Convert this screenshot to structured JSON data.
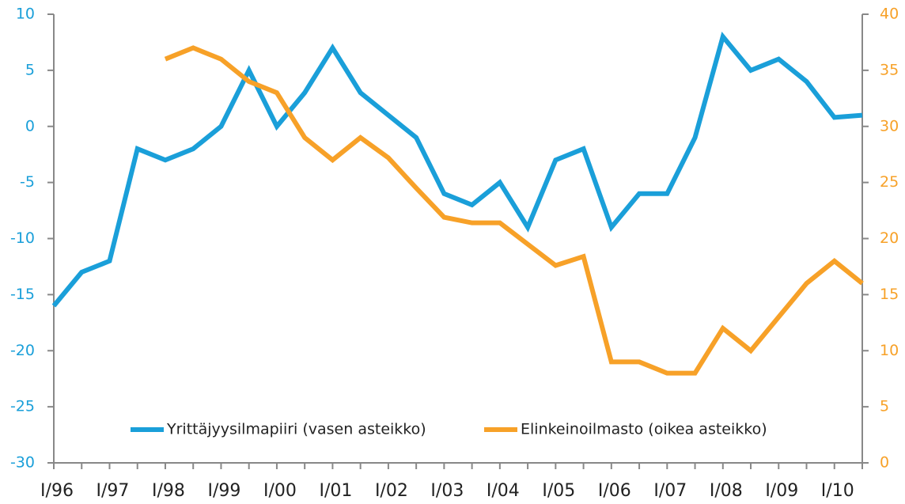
{
  "chart_data": {
    "type": "line",
    "categories": [
      "I/96",
      null,
      "I/97",
      null,
      "I/98",
      null,
      "I/99",
      null,
      "I/00",
      null,
      "I/01",
      null,
      "I/02",
      null,
      "I/03",
      null,
      "I/04",
      null,
      "I/05",
      null,
      "I/06",
      null,
      "I/07",
      null,
      "I/08",
      null,
      "I/09",
      null,
      "I/10",
      null
    ],
    "series": [
      {
        "name": "Yrittäjyysilmapiiri (vasen asteikko)",
        "color": "#1a9fd9",
        "axis": "y",
        "values": [
          -16,
          -13,
          -12,
          -2,
          -3,
          -2,
          0,
          5,
          0,
          3,
          7,
          3,
          1,
          -1,
          -6,
          -7,
          -5,
          -9,
          -3,
          -2,
          -9,
          -6,
          -6,
          -1,
          8,
          5,
          6,
          4,
          0.8,
          1
        ]
      },
      {
        "name": "Elinkeinoilmasto (oikea asteikko)",
        "color": "#f7a128",
        "axis": "y2",
        "values": [
          null,
          null,
          null,
          null,
          36,
          37,
          36,
          34,
          33,
          29,
          27,
          29,
          27.2,
          24.5,
          21.9,
          21.4,
          21.4,
          19.5,
          17.6,
          18.4,
          9,
          9,
          8,
          8,
          12,
          10,
          13,
          16,
          18,
          16
        ]
      }
    ],
    "ylim": [
      -30,
      10
    ],
    "yticks": [
      -30,
      -25,
      -20,
      -15,
      -10,
      -5,
      0,
      5,
      10
    ],
    "y2lim": [
      0,
      40
    ],
    "y2ticks": [
      0,
      5,
      10,
      15,
      20,
      25,
      30,
      35,
      40
    ],
    "legend": "bottom"
  }
}
